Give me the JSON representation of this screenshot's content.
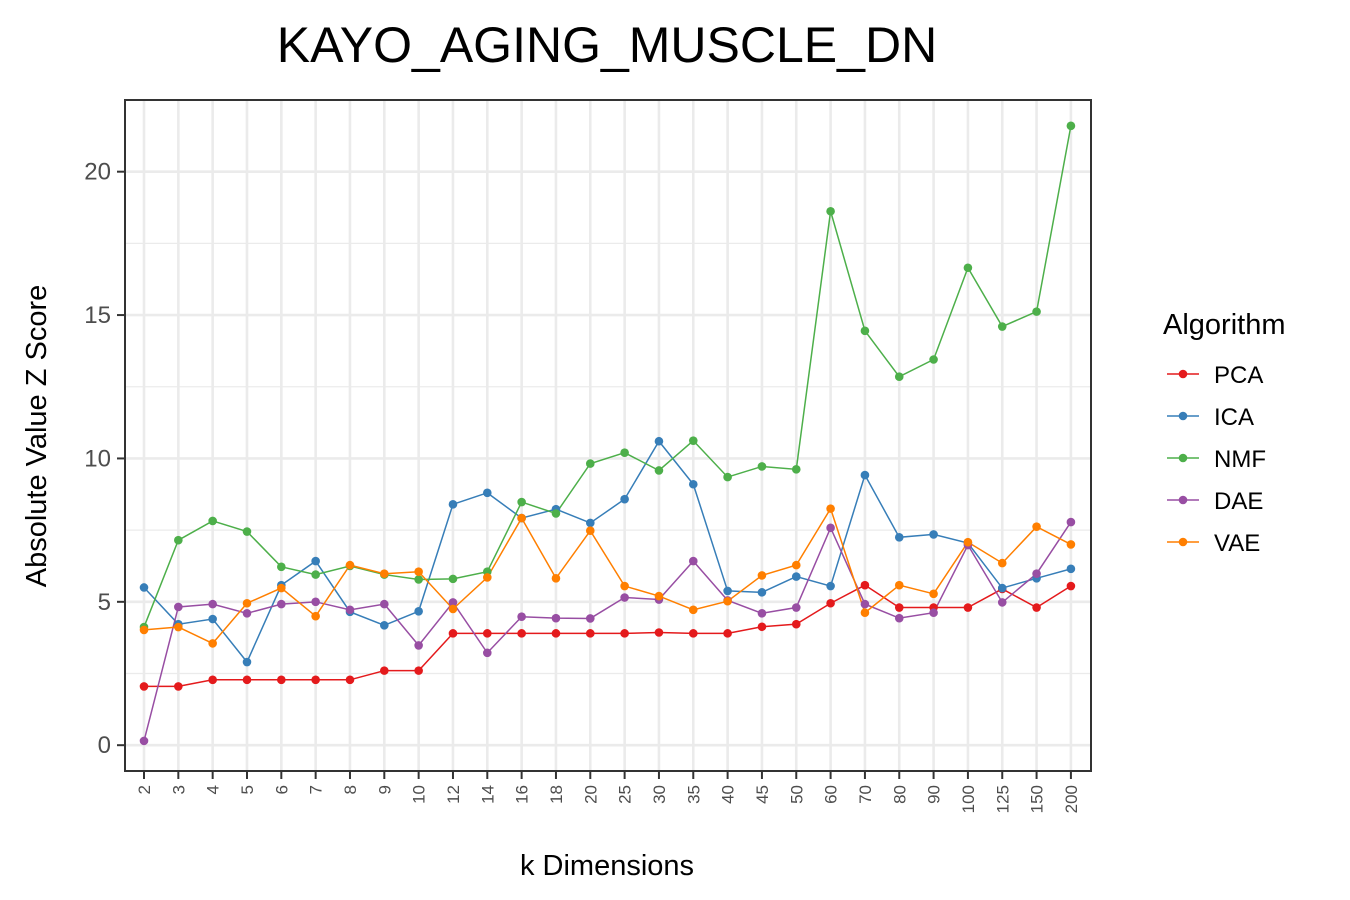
{
  "chart_data": {
    "type": "line",
    "title": "KAYO_AGING_MUSCLE_DN",
    "xlabel": "k Dimensions",
    "ylabel": "Absolute Value Z Score",
    "ylim": [
      -0.9,
      22.5
    ],
    "yticks": [
      0,
      5,
      10,
      15,
      20
    ],
    "grid": true,
    "legend_title": "Algorithm",
    "legend_position": "right",
    "categories": [
      "2",
      "3",
      "4",
      "5",
      "6",
      "7",
      "8",
      "9",
      "10",
      "12",
      "14",
      "16",
      "18",
      "20",
      "25",
      "30",
      "35",
      "40",
      "45",
      "50",
      "60",
      "70",
      "80",
      "90",
      "100",
      "125",
      "150",
      "200"
    ],
    "series": [
      {
        "name": "PCA",
        "color": "#e41a1c",
        "values": [
          2.05,
          2.05,
          2.28,
          2.28,
          2.28,
          2.28,
          2.28,
          2.6,
          2.6,
          3.9,
          3.9,
          3.9,
          3.9,
          3.9,
          3.9,
          3.93,
          3.9,
          3.9,
          4.13,
          4.22,
          4.95,
          5.58,
          4.8,
          4.8,
          4.8,
          5.45,
          4.8,
          5.55
        ]
      },
      {
        "name": "ICA",
        "color": "#377eb8",
        "values": [
          5.5,
          4.22,
          4.4,
          2.9,
          5.58,
          6.42,
          4.65,
          4.18,
          4.67,
          8.4,
          8.8,
          7.92,
          8.23,
          7.75,
          8.58,
          10.6,
          9.1,
          5.38,
          5.33,
          5.88,
          5.55,
          9.42,
          7.25,
          7.35,
          7.05,
          5.48,
          5.82,
          6.15
        ]
      },
      {
        "name": "NMF",
        "color": "#4daf4a",
        "values": [
          4.12,
          7.15,
          7.82,
          7.45,
          6.22,
          5.95,
          6.25,
          5.95,
          5.78,
          5.8,
          6.05,
          8.48,
          8.08,
          9.82,
          10.2,
          9.58,
          10.62,
          9.35,
          9.72,
          9.62,
          18.62,
          14.45,
          12.85,
          13.45,
          16.65,
          14.6,
          15.12,
          21.6
        ]
      },
      {
        "name": "DAE",
        "color": "#984ea3",
        "values": [
          0.15,
          4.82,
          4.92,
          4.6,
          4.92,
          5.0,
          4.72,
          4.92,
          3.48,
          4.98,
          3.22,
          4.48,
          4.43,
          4.42,
          5.15,
          5.08,
          6.42,
          5.05,
          4.6,
          4.8,
          7.58,
          4.92,
          4.43,
          4.62,
          6.98,
          4.98,
          5.98,
          7.78
        ]
      },
      {
        "name": "VAE",
        "color": "#ff7f00",
        "values": [
          4.02,
          4.12,
          3.55,
          4.95,
          5.48,
          4.5,
          6.28,
          5.98,
          6.05,
          4.75,
          5.85,
          7.92,
          5.82,
          7.48,
          5.55,
          5.2,
          4.72,
          5.02,
          5.92,
          6.28,
          8.25,
          4.62,
          5.58,
          5.28,
          7.08,
          6.35,
          7.62,
          7.0
        ]
      }
    ]
  }
}
